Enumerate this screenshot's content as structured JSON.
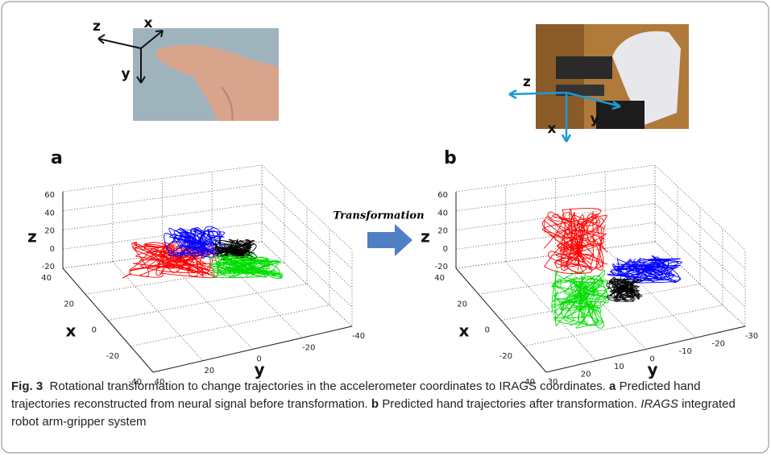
{
  "figure": {
    "panels": [
      {
        "label": "a",
        "photo_axes": {
          "z": "z",
          "x": "x",
          "y": "y"
        },
        "axes": {
          "z_label": "z",
          "x_label": "x",
          "y_label": "y",
          "z_ticks": [
            60,
            40,
            20,
            0,
            -20
          ],
          "x_ticks": [
            40,
            20,
            0,
            -20,
            -40
          ],
          "y_ticks": [
            40,
            20,
            0,
            -20,
            -40
          ]
        }
      },
      {
        "label": "b",
        "photo_axes": {
          "z": "z",
          "x": "x",
          "y": "y"
        },
        "axes": {
          "z_label": "z",
          "x_label": "x",
          "y_label": "y",
          "z_ticks": [
            60,
            40,
            20,
            0,
            -20
          ],
          "x_ticks": [
            40,
            20,
            0,
            -20,
            -40
          ],
          "y_ticks": [
            30,
            20,
            10,
            0,
            -10,
            -20,
            -30
          ]
        }
      }
    ],
    "arrow_label": "Transformation",
    "caption": {
      "figure_number": "Fig. 3",
      "text": "Rotational transformation to change trajectories in the accelerometer coordinates to IRAGS coordinates.",
      "part_a_label": "a",
      "part_a_text": "Predicted hand trajectories reconstructed from neural signal before transformation.",
      "part_b_label": "b",
      "part_b_text": "Predicted hand trajectories after transformation.",
      "abbreviation": "IRAGS",
      "abbreviation_text": "integrated robot arm-gripper system"
    }
  }
}
